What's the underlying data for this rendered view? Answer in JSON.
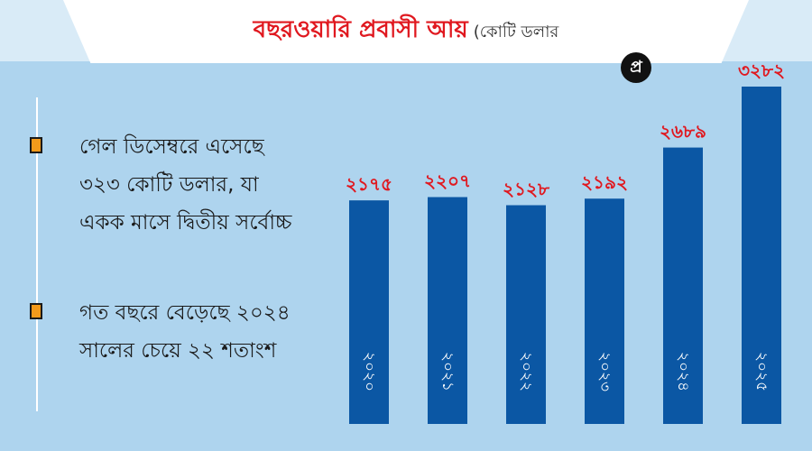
{
  "title": "বছরওয়ারি প্রবাসী আয়",
  "unit_label": "(কোটি ডলার",
  "logo_text": "প্র",
  "notes": [
    "গেল ডিসেম্বরে এসেছে ৩২৩ কোটি ডলার, যা একক মাসে দ্বিতীয় সর্বোচ্চ",
    "গত বছরে বেড়েছে ২০২৪ সালের চেয়ে ২২ শতাংশ"
  ],
  "colors": {
    "background": "#aed4ee",
    "bar": "#0b57a4",
    "value_label": "#e0181f",
    "year_label": "#ffffff",
    "bullet": "#f39a1b"
  },
  "chart_data": {
    "type": "bar",
    "categories": [
      "২০২০",
      "২০২১",
      "২০২২",
      "২০২৩",
      "২০২৪",
      "২০২৫"
    ],
    "values": [
      2175,
      2207,
      2128,
      2192,
      2689,
      3282
    ],
    "value_labels": [
      "২১৭৫",
      "২২০৭",
      "২১২৮",
      "২১৯২",
      "২৬৮৯",
      "৩২৮২"
    ],
    "ylim": [
      0,
      3282
    ]
  }
}
